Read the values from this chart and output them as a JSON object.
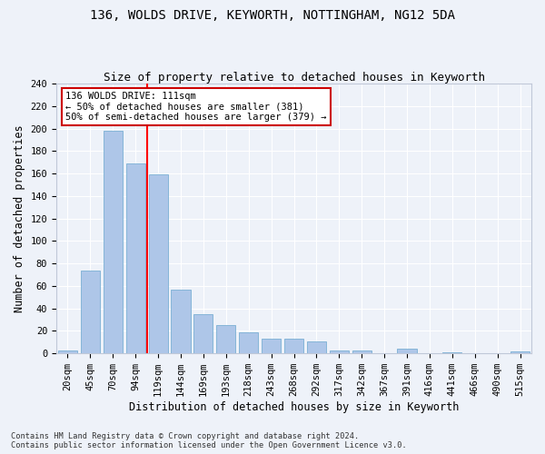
{
  "title1": "136, WOLDS DRIVE, KEYWORTH, NOTTINGHAM, NG12 5DA",
  "title2": "Size of property relative to detached houses in Keyworth",
  "xlabel": "Distribution of detached houses by size in Keyworth",
  "ylabel": "Number of detached properties",
  "bar_labels": [
    "20sqm",
    "45sqm",
    "70sqm",
    "94sqm",
    "119sqm",
    "144sqm",
    "169sqm",
    "193sqm",
    "218sqm",
    "243sqm",
    "268sqm",
    "292sqm",
    "317sqm",
    "342sqm",
    "367sqm",
    "391sqm",
    "416sqm",
    "441sqm",
    "466sqm",
    "490sqm",
    "515sqm"
  ],
  "bar_values": [
    3,
    74,
    198,
    169,
    159,
    57,
    35,
    25,
    19,
    13,
    13,
    11,
    3,
    3,
    0,
    4,
    0,
    1,
    0,
    0,
    2
  ],
  "bar_color": "#aec6e8",
  "bar_edgecolor": "#7aafd4",
  "redline_x": 3.5,
  "annotation_line1": "136 WOLDS DRIVE: 111sqm",
  "annotation_line2": "← 50% of detached houses are smaller (381)",
  "annotation_line3": "50% of semi-detached houses are larger (379) →",
  "annotation_box_color": "#ffffff",
  "annotation_box_edgecolor": "#cc0000",
  "footer1": "Contains HM Land Registry data © Crown copyright and database right 2024.",
  "footer2": "Contains public sector information licensed under the Open Government Licence v3.0.",
  "ylim": [
    0,
    240
  ],
  "yticks": [
    0,
    20,
    40,
    60,
    80,
    100,
    120,
    140,
    160,
    180,
    200,
    220,
    240
  ],
  "background_color": "#eef2f9",
  "grid_color": "#ffffff",
  "title1_fontsize": 10,
  "title2_fontsize": 9,
  "tick_fontsize": 7.5,
  "ylabel_fontsize": 8.5,
  "xlabel_fontsize": 8.5,
  "annotation_fontsize": 7.5,
  "footer_fontsize": 6.2
}
